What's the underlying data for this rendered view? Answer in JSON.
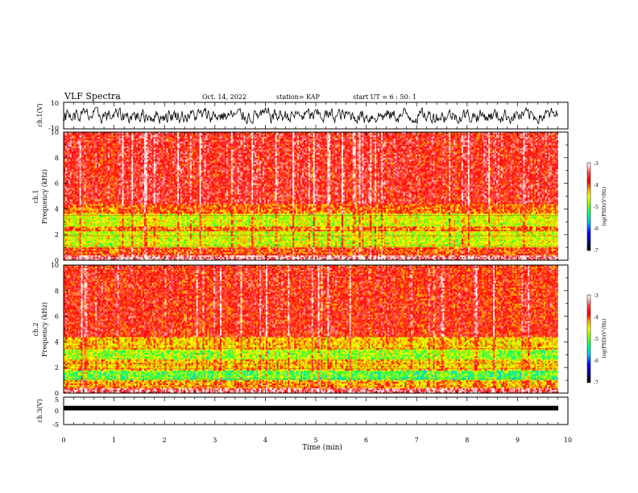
{
  "header": {
    "title": "VLF Spectra",
    "date": "Oct. 14, 2022",
    "station": "station= KAP",
    "start": "start UT =  6 : 50: 1"
  },
  "colors": {
    "spectrogram_scale": [
      "#000000",
      "#00008b",
      "#0000ff",
      "#00bfff",
      "#00ff7f",
      "#7fff00",
      "#ffff00",
      "#ffa500",
      "#ff0000",
      "#ff4040",
      "#ffc8c8",
      "#ffffff"
    ],
    "waveform": "#000000"
  },
  "chart_data": [
    {
      "type": "line",
      "panel": "ch1-waveform",
      "ylabel": "ch.1(V)",
      "ylim": [
        -10,
        10
      ],
      "yticks": [
        "10",
        "-10"
      ],
      "xlim": [
        0,
        10
      ],
      "description_values": "dense noise-like oscillation mostly between about -5 and 5 V",
      "series": [
        {
          "values_range": [
            -6,
            6
          ]
        }
      ]
    },
    {
      "type": "heatmap",
      "panel": "ch1-spectrogram",
      "ylabel": "ch.1\nFrequency (kHz)",
      "ylim": [
        0,
        10
      ],
      "yticks": [
        "0",
        "2",
        "4",
        "6",
        "8",
        "10"
      ],
      "xlim": [
        0,
        9.8
      ],
      "colorbar": {
        "label": "log(PSD)(V²/Hz)",
        "range": [
          -7,
          -3
        ],
        "ticks": [
          "-3",
          "-4",
          "-5",
          "-6",
          "-7"
        ]
      },
      "bands": [
        {
          "f_range": [
            0,
            0.4
          ],
          "level": -3.5
        },
        {
          "f_range": [
            0.4,
            1.0
          ],
          "level": -4.2
        },
        {
          "f_range": [
            1.0,
            2.2
          ],
          "level": -4.9
        },
        {
          "f_range": [
            2.2,
            2.6
          ],
          "level": -4.4
        },
        {
          "f_range": [
            2.6,
            3.6
          ],
          "level": -4.9
        },
        {
          "f_range": [
            3.6,
            4.4
          ],
          "level": -4.3
        },
        {
          "f_range": [
            4.4,
            10
          ],
          "level": -3.9
        }
      ]
    },
    {
      "type": "heatmap",
      "panel": "ch2-spectrogram",
      "ylabel": "ch.2\nFrequency (kHz)",
      "ylim": [
        0,
        10
      ],
      "yticks": [
        "0",
        "2",
        "4",
        "6",
        "8",
        "10"
      ],
      "xlim": [
        0,
        9.8
      ],
      "colorbar": {
        "label": "log(PSD)(V²/Hz)",
        "range": [
          -7,
          -3
        ],
        "ticks": [
          "-3",
          "-4",
          "-5",
          "-6",
          "-7"
        ]
      },
      "bands": [
        {
          "f_range": [
            0,
            0.4
          ],
          "level": -3.6
        },
        {
          "f_range": [
            0.4,
            1.0
          ],
          "level": -4.5
        },
        {
          "f_range": [
            1.0,
            1.8
          ],
          "level": -5.3
        },
        {
          "f_range": [
            1.8,
            2.6
          ],
          "level": -4.6
        },
        {
          "f_range": [
            2.6,
            3.4
          ],
          "level": -5.1
        },
        {
          "f_range": [
            3.4,
            4.4
          ],
          "level": -4.6
        },
        {
          "f_range": [
            4.4,
            10
          ],
          "level": -4.0
        }
      ]
    },
    {
      "type": "line",
      "panel": "ch3-waveform",
      "ylabel": "ch.3(V)",
      "ylim": [
        -5,
        5
      ],
      "yticks": [
        "5",
        "0",
        "-5"
      ],
      "xlim": [
        0,
        10
      ],
      "xlabel": "Time (min)",
      "xticks": [
        "0",
        "1",
        "2",
        "3",
        "4",
        "5",
        "6",
        "7",
        "8",
        "9",
        "10"
      ],
      "series": [
        {
          "values_range": [
            -0.3,
            0.3
          ]
        }
      ]
    }
  ]
}
